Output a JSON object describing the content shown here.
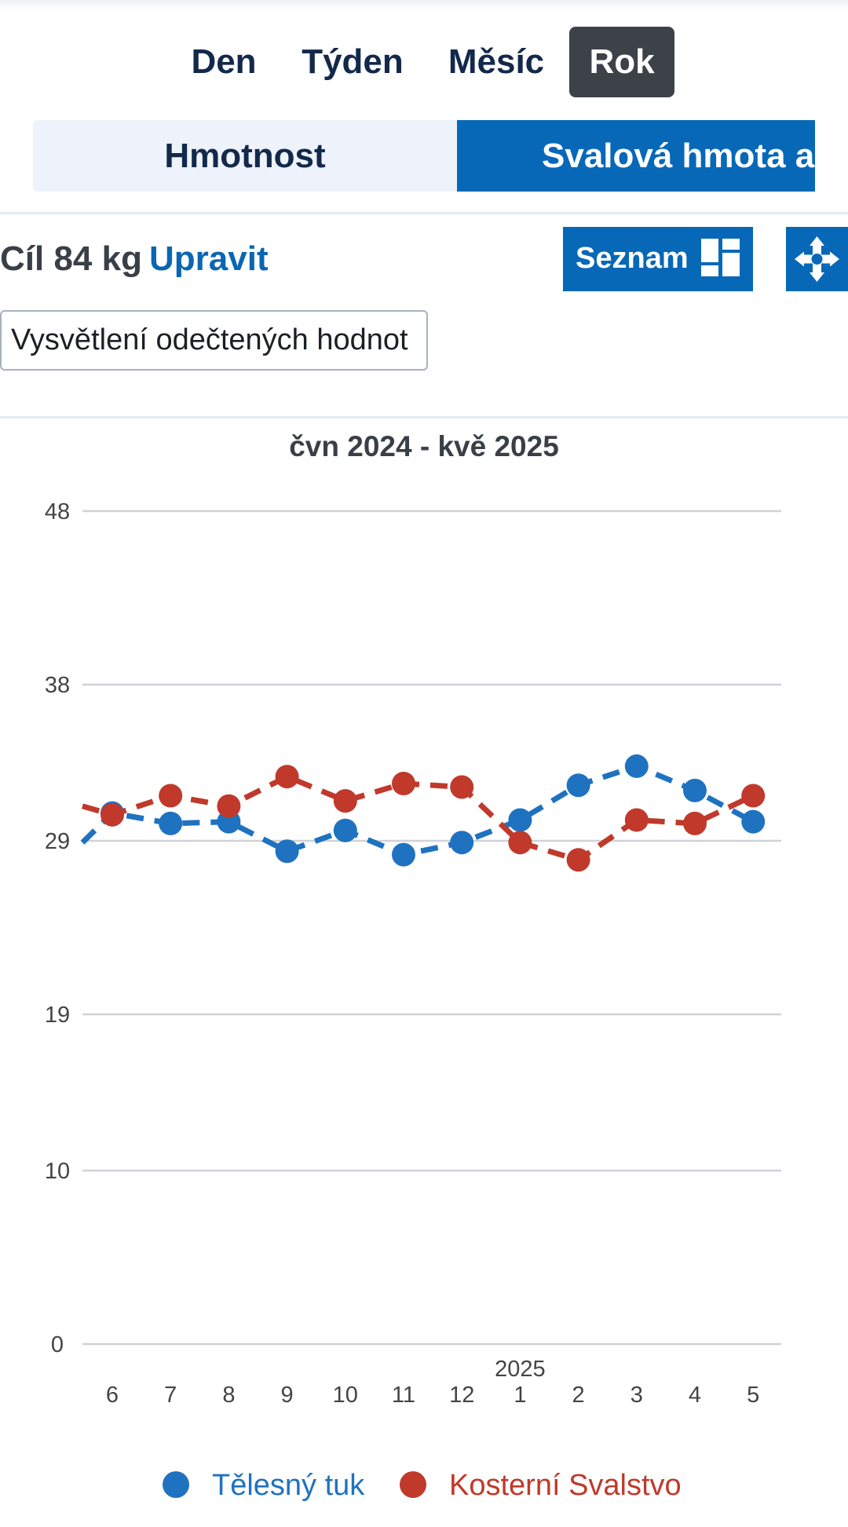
{
  "period_tabs": [
    {
      "label": "Den",
      "active": false
    },
    {
      "label": "Týden",
      "active": false
    },
    {
      "label": "Měsíc",
      "active": false
    },
    {
      "label": "Rok",
      "active": true
    }
  ],
  "metric_tabs": [
    {
      "label": "Hmotnost",
      "active": false
    },
    {
      "label": "Svalová hmota a tuk",
      "active": true
    }
  ],
  "goal": {
    "label": "Cíl 84 kg",
    "edit_label": "Upravit"
  },
  "list_button": {
    "label": "Seznam",
    "icon": "grid-layout-icon"
  },
  "move_button": {
    "icon": "move-arrows-icon"
  },
  "explain_button": {
    "label": "Vysvětlení odečtených hodnot"
  },
  "colors": {
    "accent": "#0768b8",
    "body_fat": "#1f72c0",
    "skeletal_muscle": "#c0392b",
    "active_tab": "#3d4148"
  },
  "chart_data": {
    "type": "line",
    "title": "čvn 2024 - kvě 2025",
    "categories": [
      "6",
      "7",
      "8",
      "9",
      "10",
      "11",
      "12",
      "1",
      "2",
      "3",
      "4",
      "5"
    ],
    "year_marker": {
      "category": "1",
      "label": "2025"
    },
    "yticks": [
      0,
      10,
      19,
      29,
      38,
      48
    ],
    "ylim": [
      0,
      48
    ],
    "grid": true,
    "legend_position": "bottom",
    "series": [
      {
        "name": "Tělesný tuk",
        "color": "#1f72c0",
        "values": [
          30.6,
          30.0,
          30.1,
          28.4,
          29.6,
          28.2,
          28.9,
          30.2,
          32.2,
          33.3,
          31.9,
          30.1
        ],
        "lead_in": 28.9
      },
      {
        "name": "Kosterní Svalstvo",
        "color": "#c0392b",
        "values": [
          30.5,
          31.6,
          31.0,
          32.7,
          31.3,
          32.3,
          32.1,
          28.9,
          27.9,
          30.2,
          30.0,
          31.6
        ],
        "lead_in": 31.0
      }
    ]
  }
}
